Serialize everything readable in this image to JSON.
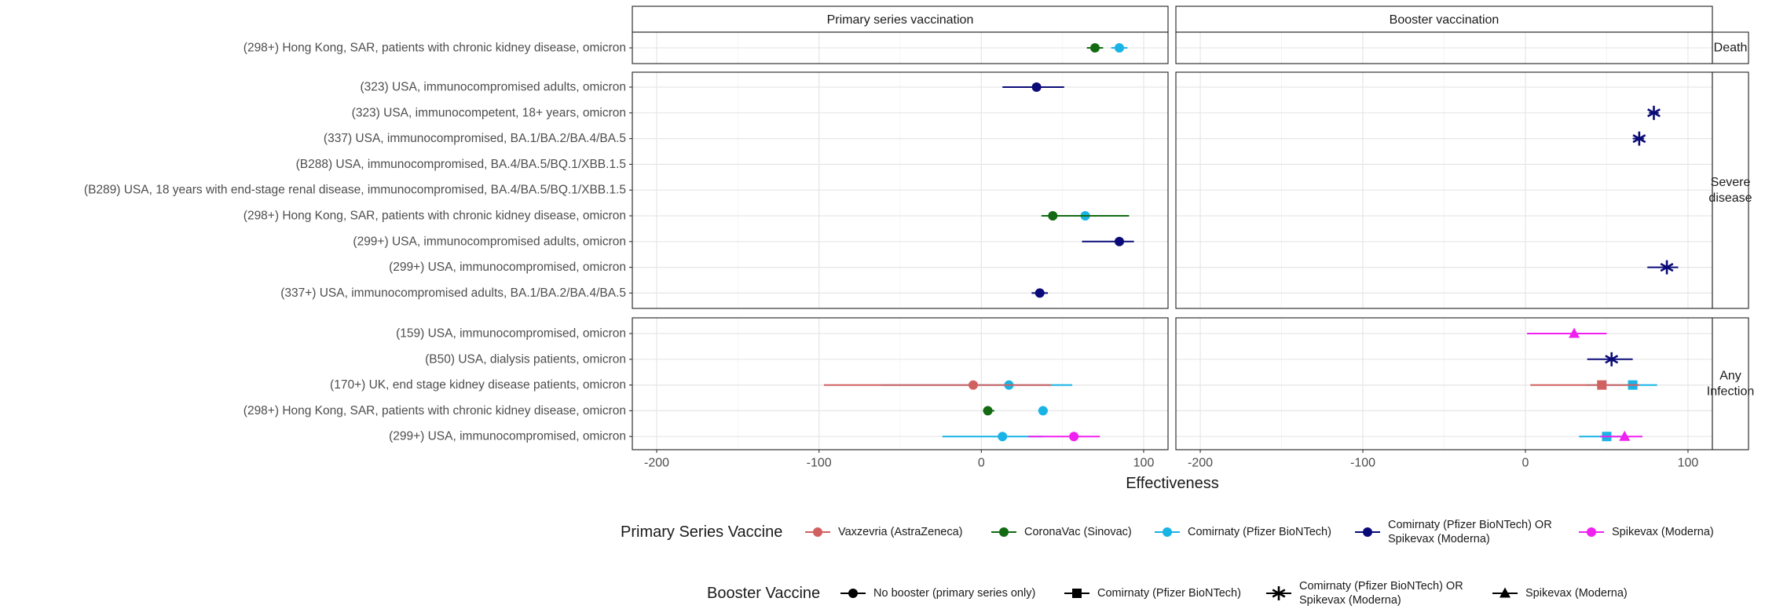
{
  "chart_data": {
    "type": "forest",
    "xlabel": "Effectiveness",
    "xlim": [
      -215,
      115
    ],
    "xticks": [
      -200,
      -100,
      0,
      100
    ],
    "grid": true,
    "columns": [
      "Primary series vaccination",
      "Booster vaccination"
    ],
    "rows_facets": [
      {
        "label": [
          "Death"
        ],
        "studies": [
          "(298+) Hong Kong, SAR, patients with chronic kidney disease, omicron"
        ]
      },
      {
        "label": [
          "Severe",
          "disease"
        ],
        "studies": [
          "(323) USA, immunocompromised adults, omicron",
          "(323) USA, immunocompetent, 18+ years, omicron",
          "(337) USA, immunocompromised, BA.1/BA.2/BA.4/BA.5",
          "(B288) USA, immunocompromised, BA.4/BA.5/BQ.1/XBB.1.5",
          "(B289) USA, 18 years with end-stage renal disease, immunocompromised, BA.4/BA.5/BQ.1/XBB.1.5",
          "(298+) Hong Kong, SAR, patients with chronic kidney disease, omicron",
          "(299+) USA, immunocompromised adults, omicron",
          "(299+) USA, immunocompromised, omicron",
          "(337+) USA, immunocompromised adults, BA.1/BA.2/BA.4/BA.5"
        ]
      },
      {
        "label": [
          "Any",
          "Infection"
        ],
        "studies": [
          "(159) USA, immunocompromised, omicron",
          "(B50) USA, dialysis patients, omicron",
          "(170+) UK, end stage kidney disease patients, omicron",
          "(298+) Hong Kong, SAR, patients with chronic kidney disease, omicron",
          "(299+) USA, immunocompromised, omicron"
        ]
      }
    ],
    "points": [
      {
        "facet": 0,
        "row": 0,
        "col": 0,
        "vaccine": "CoronaVac (Sinovac)",
        "booster": "No booster (primary series only)",
        "est": 70,
        "lo": 65,
        "hi": 75
      },
      {
        "facet": 0,
        "row": 0,
        "col": 0,
        "vaccine": "Comirnaty (Pfizer BioNTech)",
        "booster": "No booster (primary series only)",
        "est": 85,
        "lo": 80,
        "hi": 90
      },
      {
        "facet": 1,
        "row": 0,
        "col": 0,
        "vaccine": "Comirnaty (Pfizer BioNTech) OR Spikevax (Moderna)",
        "booster": "No booster (primary series only)",
        "est": 34,
        "lo": 13,
        "hi": 51
      },
      {
        "facet": 1,
        "row": 1,
        "col": 1,
        "vaccine": "Comirnaty (Pfizer BioNTech) OR Spikevax (Moderna)",
        "booster": "Comirnaty (Pfizer BioNTech) OR Spikevax (Moderna)",
        "est": 79,
        "lo": 76,
        "hi": 82
      },
      {
        "facet": 1,
        "row": 2,
        "col": 1,
        "vaccine": "Comirnaty (Pfizer BioNTech) OR Spikevax (Moderna)",
        "booster": "Comirnaty (Pfizer BioNTech) OR Spikevax (Moderna)",
        "est": 70,
        "lo": 66,
        "hi": 73
      },
      {
        "facet": 1,
        "row": 5,
        "col": 0,
        "vaccine": "Comirnaty (Pfizer BioNTech)",
        "booster": "No booster (primary series only)",
        "est": 64,
        "lo": 56,
        "hi": 71
      },
      {
        "facet": 1,
        "row": 5,
        "col": 0,
        "vaccine": "CoronaVac (Sinovac)",
        "booster": "No booster (primary series only)",
        "est": 44,
        "lo": 37,
        "hi": 91
      },
      {
        "facet": 1,
        "row": 6,
        "col": 0,
        "vaccine": "Comirnaty (Pfizer BioNTech) OR Spikevax (Moderna)",
        "booster": "No booster (primary series only)",
        "est": 85,
        "lo": 62,
        "hi": 94
      },
      {
        "facet": 1,
        "row": 7,
        "col": 1,
        "vaccine": "Comirnaty (Pfizer BioNTech) OR Spikevax (Moderna)",
        "booster": "Comirnaty (Pfizer BioNTech) OR Spikevax (Moderna)",
        "est": 87,
        "lo": 75,
        "hi": 94
      },
      {
        "facet": 1,
        "row": 8,
        "col": 0,
        "vaccine": "Comirnaty (Pfizer BioNTech) OR Spikevax (Moderna)",
        "booster": "No booster (primary series only)",
        "est": 36,
        "lo": 31,
        "hi": 41
      },
      {
        "facet": 2,
        "row": 0,
        "col": 1,
        "vaccine": "Spikevax (Moderna)",
        "booster": "Spikevax (Moderna)",
        "est": 30,
        "lo": 1,
        "hi": 50
      },
      {
        "facet": 2,
        "row": 1,
        "col": 1,
        "vaccine": "Comirnaty (Pfizer BioNTech) OR Spikevax (Moderna)",
        "booster": "Comirnaty (Pfizer BioNTech) OR Spikevax (Moderna)",
        "est": 53,
        "lo": 38,
        "hi": 66
      },
      {
        "facet": 2,
        "row": 2,
        "col": 0,
        "vaccine": "Comirnaty (Pfizer BioNTech)",
        "booster": "No booster (primary series only)",
        "est": 17,
        "lo": -62,
        "hi": 56
      },
      {
        "facet": 2,
        "row": 2,
        "col": 0,
        "vaccine": "Vaxzevria (AstraZeneca)",
        "booster": "No booster (primary series only)",
        "est": -5,
        "lo": -97,
        "hi": 43
      },
      {
        "facet": 2,
        "row": 2,
        "col": 1,
        "vaccine": "Comirnaty (Pfizer BioNTech)",
        "booster": "Comirnaty (Pfizer BioNTech)",
        "est": 66,
        "lo": 37,
        "hi": 81
      },
      {
        "facet": 2,
        "row": 2,
        "col": 1,
        "vaccine": "Vaxzevria (AstraZeneca)",
        "booster": "Comirnaty (Pfizer BioNTech)",
        "est": 47,
        "lo": 3,
        "hi": 70
      },
      {
        "facet": 2,
        "row": 3,
        "col": 0,
        "vaccine": "CoronaVac (Sinovac)",
        "booster": "No booster (primary series only)",
        "est": 4,
        "lo": 1,
        "hi": 8
      },
      {
        "facet": 2,
        "row": 3,
        "col": 0,
        "vaccine": "Comirnaty (Pfizer BioNTech)",
        "booster": "No booster (primary series only)",
        "est": 38,
        "lo": 35,
        "hi": 41
      },
      {
        "facet": 2,
        "row": 4,
        "col": 0,
        "vaccine": "Comirnaty (Pfizer BioNTech)",
        "booster": "No booster (primary series only)",
        "est": 13,
        "lo": -24,
        "hi": 38
      },
      {
        "facet": 2,
        "row": 4,
        "col": 0,
        "vaccine": "Spikevax (Moderna)",
        "booster": "No booster (primary series only)",
        "est": 57,
        "lo": 29,
        "hi": 73
      },
      {
        "facet": 2,
        "row": 4,
        "col": 1,
        "vaccine": "Comirnaty (Pfizer BioNTech)",
        "booster": "Comirnaty (Pfizer BioNTech)",
        "est": 50,
        "lo": 33,
        "hi": 63
      },
      {
        "facet": 2,
        "row": 4,
        "col": 1,
        "vaccine": "Spikevax (Moderna)",
        "booster": "Spikevax (Moderna)",
        "est": 61,
        "lo": 46,
        "hi": 72
      }
    ],
    "legend_primary": {
      "title": "Primary Series Vaccine",
      "items": [
        {
          "label": [
            "Vaxzevria (AstraZeneca)"
          ],
          "color": "#d16060"
        },
        {
          "label": [
            "CoronaVac (Sinovac)"
          ],
          "color": "#126b12"
        },
        {
          "label": [
            "Comirnaty (Pfizer BioNTech)"
          ],
          "color": "#19b3e6"
        },
        {
          "label": [
            "Comirnaty (Pfizer BioNTech) OR",
            "Spikevax (Moderna)"
          ],
          "color": "#0a0a78"
        },
        {
          "label": [
            "Spikevax (Moderna)"
          ],
          "color": "#f020f0"
        }
      ]
    },
    "legend_booster": {
      "title": "Booster Vaccine",
      "items": [
        {
          "label": [
            "No booster (primary series only)"
          ],
          "shape": "circle"
        },
        {
          "label": [
            "Comirnaty (Pfizer BioNTech)"
          ],
          "shape": "square"
        },
        {
          "label": [
            "Comirnaty (Pfizer BioNTech) OR",
            "Spikevax (Moderna)"
          ],
          "shape": "asterisk"
        },
        {
          "label": [
            "Spikevax (Moderna)"
          ],
          "shape": "triangle"
        }
      ]
    },
    "legend_position": "bottom"
  }
}
